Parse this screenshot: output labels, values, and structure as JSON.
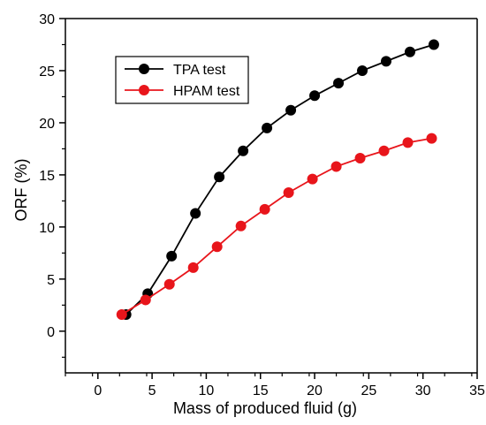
{
  "chart_data": {
    "type": "line",
    "xlabel": "Mass of produced fluid (g)",
    "ylabel": "ORF (%)",
    "xlim": [
      -3,
      35
    ],
    "ylim": [
      -4,
      30
    ],
    "xticks": [
      0,
      5,
      10,
      15,
      20,
      25,
      30,
      35
    ],
    "yticks": [
      0,
      5,
      10,
      15,
      20,
      25,
      30
    ],
    "grid": false,
    "legend_position": "top-left",
    "series": [
      {
        "name": "TPA test",
        "color": "#000000",
        "marker": "circle",
        "x": [
          2.6,
          4.6,
          6.8,
          9.0,
          11.2,
          13.4,
          15.6,
          17.8,
          20.0,
          22.2,
          24.4,
          26.6,
          28.8,
          31.0
        ],
        "y": [
          1.6,
          3.6,
          7.2,
          11.3,
          14.8,
          17.3,
          19.5,
          21.2,
          22.6,
          23.8,
          25.0,
          25.9,
          26.8,
          27.5
        ]
      },
      {
        "name": "HPAM test",
        "color": "#e8151b",
        "marker": "circle",
        "x": [
          2.2,
          4.4,
          6.6,
          8.8,
          11.0,
          13.2,
          15.4,
          17.6,
          19.8,
          22.0,
          24.2,
          26.4,
          28.6,
          30.8
        ],
        "y": [
          1.6,
          3.0,
          4.5,
          6.1,
          8.1,
          10.1,
          11.7,
          13.3,
          14.6,
          15.8,
          16.6,
          17.3,
          18.1,
          18.5
        ]
      }
    ]
  }
}
